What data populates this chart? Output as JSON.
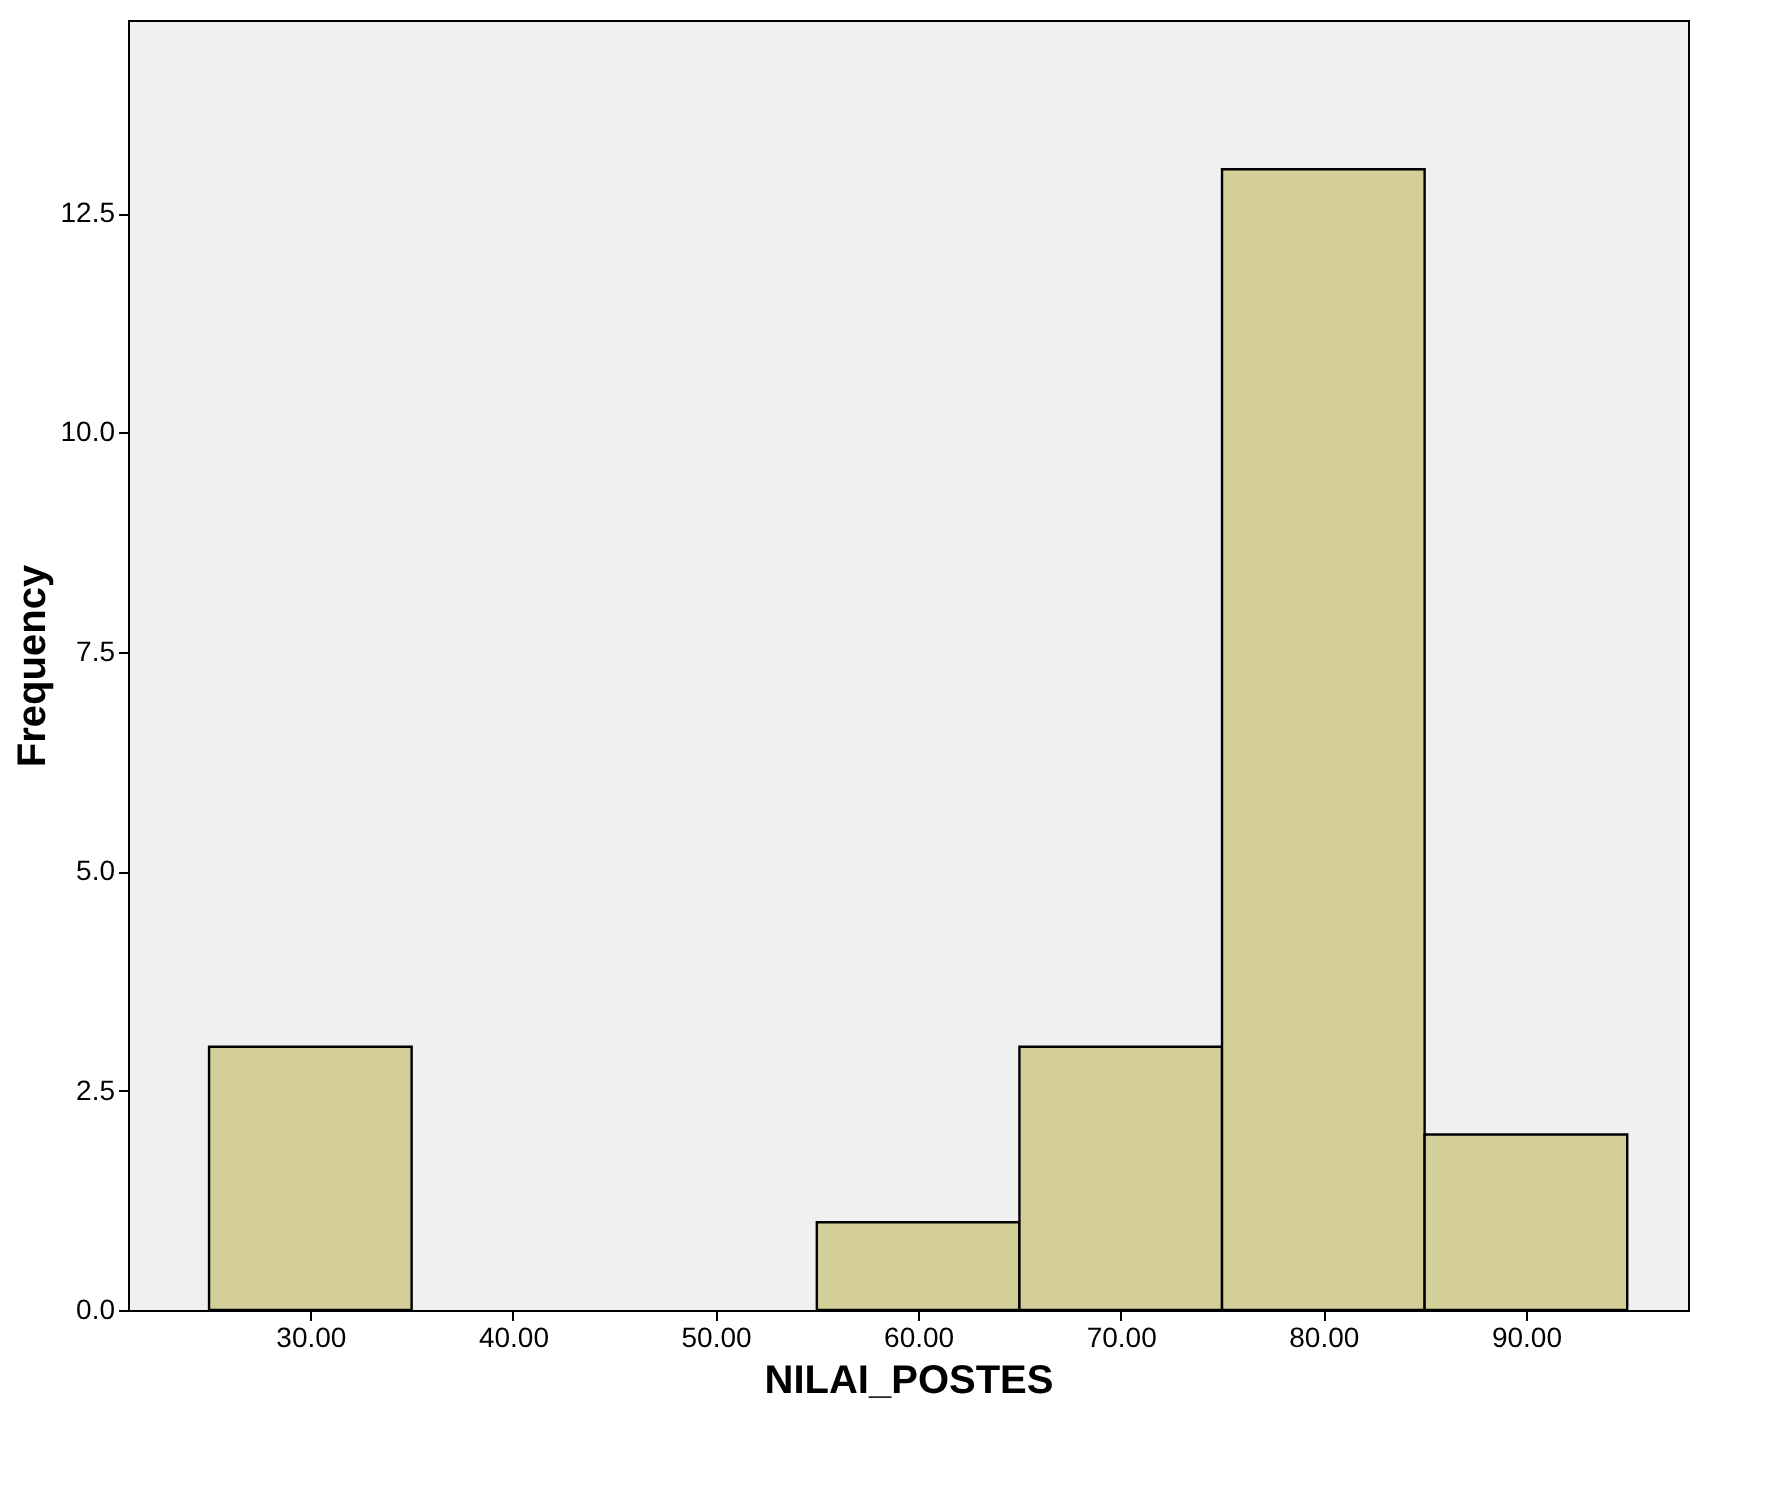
{
  "chart_data": {
    "type": "histogram",
    "xlabel": "NILAI_POSTES",
    "ylabel": "Frequency",
    "bins": [
      25,
      35,
      45,
      55,
      65,
      75,
      85,
      95
    ],
    "values": [
      3,
      0,
      0,
      1,
      3,
      13,
      2
    ],
    "color": "#d4cf98",
    "xlim": [
      21,
      98
    ],
    "xticks": [
      {
        "value": 30,
        "label": "30.00"
      },
      {
        "value": 40,
        "label": "40.00"
      },
      {
        "value": 50,
        "label": "50.00"
      },
      {
        "value": 60,
        "label": "60.00"
      },
      {
        "value": 70,
        "label": "70.00"
      },
      {
        "value": 80,
        "label": "80.00"
      },
      {
        "value": 90,
        "label": "90.00"
      }
    ],
    "ylim": [
      0,
      14.7
    ],
    "yticks": [
      {
        "value": 0,
        "label": "0.0"
      },
      {
        "value": 2.5,
        "label": "2.5"
      },
      {
        "value": 5,
        "label": "5.0"
      },
      {
        "value": 7.5,
        "label": "7.5"
      },
      {
        "value": 10,
        "label": "10.0"
      },
      {
        "value": 12.5,
        "label": "12.5"
      }
    ],
    "grid": false
  }
}
